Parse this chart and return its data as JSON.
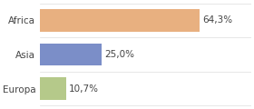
{
  "categories": [
    "Africa",
    "Asia",
    "Europa"
  ],
  "values": [
    64.3,
    25.0,
    10.7
  ],
  "labels": [
    "64,3%",
    "25,0%",
    "10,7%"
  ],
  "bar_colors": [
    "#e8b080",
    "#7b8ec8",
    "#b5c98a"
  ],
  "background_color": "#ffffff",
  "xlim": [
    0,
    85
  ],
  "bar_height": 0.65,
  "label_fontsize": 7.5,
  "tick_fontsize": 7.5
}
